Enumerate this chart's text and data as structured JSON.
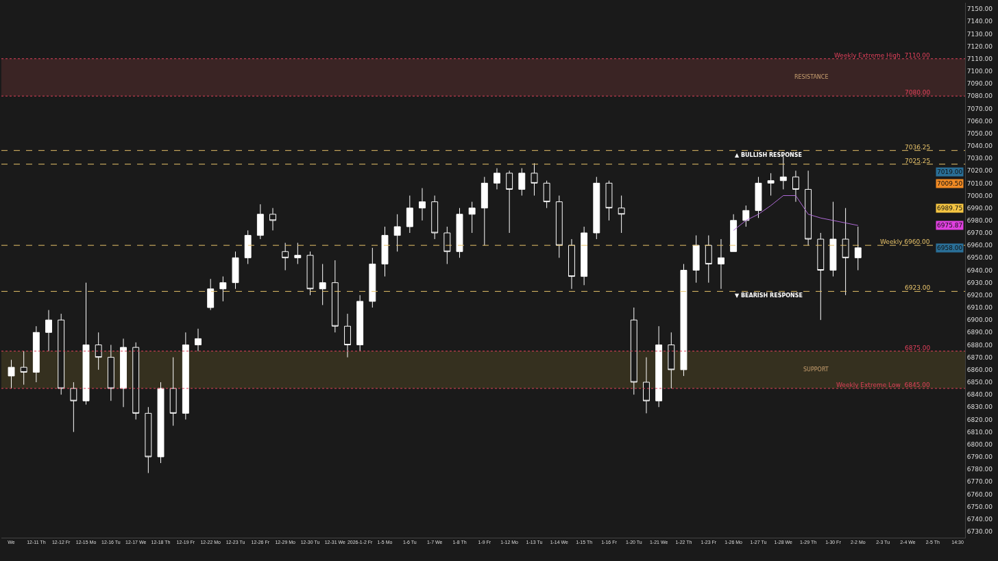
{
  "chart_data": {
    "type": "candlestick",
    "categories": [
      "We",
      null,
      "12-11 Th",
      null,
      "12-12 Fr",
      null,
      "12-15 Mo",
      null,
      "12-16 Tu",
      null,
      "12-17 We",
      null,
      "12-18 Th",
      null,
      "12-19 Fr",
      null,
      "12-22 Mo",
      null,
      "12-23 Tu",
      null,
      "12-26 Fr",
      null,
      "12-29 Mo",
      null,
      "12-30 Tu",
      null,
      "12-31 We",
      null,
      "2026-1-2 Fr",
      null,
      "1-5 Mo",
      null,
      "1-6 Tu",
      null,
      "1-7 We",
      null,
      "1-8 Th",
      null,
      "1-9 Fr",
      null,
      "1-12 Mo",
      null,
      "1-13 Tu",
      null,
      "1-14 We",
      null,
      "1-15 Th",
      null,
      "1-16 Fr",
      null,
      "1-20 Tu",
      null,
      "1-21 We",
      null,
      "1-22 Th",
      null,
      "1-23 Fr",
      null,
      "1-26 Mo",
      null,
      "1-27 Tu",
      null,
      "1-28 We",
      null,
      "1-29 Th",
      null,
      "1-30 Fr",
      null,
      "2-2 Mo",
      null,
      "2-3 Tu",
      null,
      "2-4 We",
      null,
      "2-5 Th",
      null,
      "14:30"
    ],
    "series": [
      {
        "color": "#ffffff",
        "ohlc": [
          [
            6855,
            6868,
            6845,
            6862
          ],
          [
            6862,
            6875,
            6848,
            6858
          ],
          [
            6858,
            6895,
            6850,
            6890
          ],
          [
            6890,
            6908,
            6875,
            6900
          ],
          [
            6900,
            6905,
            6840,
            6845
          ],
          [
            6845,
            6850,
            6810,
            6835
          ],
          [
            6835,
            6930,
            6832,
            6880
          ],
          [
            6880,
            6890,
            6860,
            6870
          ],
          [
            6870,
            6880,
            6835,
            6845
          ],
          [
            6845,
            6885,
            6830,
            6878
          ],
          [
            6878,
            6882,
            6820,
            6825
          ],
          [
            6825,
            6830,
            6777,
            6790
          ],
          [
            6790,
            6850,
            6785,
            6845
          ],
          [
            6845,
            6870,
            6815,
            6825
          ],
          [
            6825,
            6890,
            6820,
            6880
          ],
          [
            6880,
            6893,
            6875,
            6885
          ],
          [
            6910,
            6933,
            6908,
            6925
          ],
          [
            6925,
            6935,
            6915,
            6930
          ],
          [
            6930,
            6955,
            6925,
            6950
          ],
          [
            6950,
            6972,
            6945,
            6968
          ],
          [
            6968,
            6993,
            6965,
            6985
          ],
          [
            6985,
            6990,
            6972,
            6980
          ],
          [
            6955,
            6962,
            6940,
            6950
          ],
          [
            6950,
            6962,
            6945,
            6952
          ],
          [
            6952,
            6955,
            6920,
            6925
          ],
          [
            6925,
            6945,
            6912,
            6930
          ],
          [
            6930,
            6948,
            6890,
            6895
          ],
          [
            6895,
            6905,
            6870,
            6880
          ],
          [
            6880,
            6920,
            6875,
            6915
          ],
          [
            6915,
            6958,
            6910,
            6945
          ],
          [
            6945,
            6975,
            6935,
            6968
          ],
          [
            6968,
            6985,
            6955,
            6975
          ],
          [
            6975,
            7000,
            6970,
            6990
          ],
          [
            6990,
            7006,
            6980,
            6995
          ],
          [
            6995,
            7000,
            6965,
            6970
          ],
          [
            6970,
            6975,
            6945,
            6955
          ],
          [
            6955,
            6990,
            6950,
            6985
          ],
          [
            6985,
            6995,
            6970,
            6990
          ],
          [
            6990,
            7015,
            6960,
            7010
          ],
          [
            7010,
            7022,
            7005,
            7018
          ],
          [
            7018,
            7020,
            6970,
            7005
          ],
          [
            7005,
            7022,
            7000,
            7018
          ],
          [
            7018,
            7026,
            7000,
            7010
          ],
          [
            7010,
            7012,
            6990,
            6995
          ],
          [
            6995,
            7000,
            6950,
            6960
          ],
          [
            6960,
            6965,
            6925,
            6935
          ],
          [
            6935,
            6975,
            6928,
            6970
          ],
          [
            6970,
            7015,
            6965,
            7010
          ],
          [
            7010,
            7012,
            6980,
            6990
          ],
          [
            6990,
            7000,
            6970,
            6985
          ],
          [
            6900,
            6910,
            6840,
            6850
          ],
          [
            6850,
            6870,
            6825,
            6835
          ],
          [
            6835,
            6895,
            6830,
            6880
          ],
          [
            6880,
            6890,
            6845,
            6860
          ],
          [
            6860,
            6945,
            6855,
            6940
          ],
          [
            6940,
            6968,
            6930,
            6960
          ],
          [
            6960,
            6968,
            6930,
            6945
          ],
          [
            6945,
            6965,
            6925,
            6950
          ],
          [
            6955,
            6985,
            6955,
            6980
          ],
          [
            6980,
            6992,
            6975,
            6988
          ],
          [
            6988,
            7015,
            6982,
            7010
          ],
          [
            7010,
            7018,
            7000,
            7012
          ],
          [
            7012,
            7032,
            7005,
            7015
          ],
          [
            7015,
            7020,
            6995,
            7005
          ],
          [
            7005,
            7020,
            6960,
            6965
          ],
          [
            6965,
            6970,
            6900,
            6940
          ],
          [
            6940,
            6995,
            6935,
            6965
          ],
          [
            6965,
            6990,
            6920,
            6950
          ],
          [
            6950,
            6975,
            6940,
            6958
          ],
          null,
          null,
          null,
          null,
          null,
          null,
          null,
          null
        ]
      },
      {
        "type": "line",
        "color": "#b06bd8",
        "values": [
          null,
          null,
          null,
          null,
          null,
          null,
          null,
          null,
          null,
          null,
          null,
          null,
          null,
          null,
          null,
          null,
          null,
          null,
          null,
          null,
          null,
          null,
          null,
          null,
          null,
          null,
          null,
          null,
          null,
          null,
          null,
          null,
          null,
          null,
          null,
          null,
          null,
          null,
          null,
          null,
          null,
          null,
          null,
          null,
          null,
          null,
          null,
          null,
          null,
          null,
          null,
          null,
          null,
          null,
          null,
          null,
          null,
          null,
          6972,
          6980,
          6985,
          6992,
          7000,
          7000,
          6985,
          6982,
          6980,
          6978,
          6976,
          null,
          null,
          null,
          null,
          null,
          null,
          null,
          null
        ]
      }
    ],
    "ylim": [
      6725,
      7155
    ],
    "yticks": [
      {
        "value": 6730,
        "label": "6730.00"
      },
      {
        "value": 6740,
        "label": "6740.00"
      },
      {
        "value": 6750,
        "label": "6750.00"
      },
      {
        "value": 6760,
        "label": "6760.00"
      },
      {
        "value": 6770,
        "label": "6770.00"
      },
      {
        "value": 6780,
        "label": "6780.00"
      },
      {
        "value": 6790,
        "label": "6790.00"
      },
      {
        "value": 6800,
        "label": "6800.00"
      },
      {
        "value": 6810,
        "label": "6810.00"
      },
      {
        "value": 6820,
        "label": "6820.00"
      },
      {
        "value": 6830,
        "label": "6830.00"
      },
      {
        "value": 6840,
        "label": "6840.00"
      },
      {
        "value": 6850,
        "label": "6850.00"
      },
      {
        "value": 6860,
        "label": "6860.00"
      },
      {
        "value": 6870,
        "label": "6870.00"
      },
      {
        "value": 6880,
        "label": "6880.00"
      },
      {
        "value": 6890,
        "label": "6890.00"
      },
      {
        "value": 6900,
        "label": "6900.00"
      },
      {
        "value": 6910,
        "label": "6910.00"
      },
      {
        "value": 6920,
        "label": "6920.00"
      },
      {
        "value": 6930,
        "label": "6930.00"
      },
      {
        "value": 6940,
        "label": "6940.00"
      },
      {
        "value": 6950,
        "label": "6950.00"
      },
      {
        "value": 6960,
        "label": "6960.00"
      },
      {
        "value": 6970,
        "label": "6970.00"
      },
      {
        "value": 6980,
        "label": "6980.00"
      },
      {
        "value": 6990,
        "label": "6990.00"
      },
      {
        "value": 7000,
        "label": "7000.00"
      },
      {
        "value": 7010,
        "label": "7010.00"
      },
      {
        "value": 7020,
        "label": "7020.00"
      },
      {
        "value": 7030,
        "label": "7030.00"
      },
      {
        "value": 7040,
        "label": "7040.00"
      },
      {
        "value": 7050,
        "label": "7050.00"
      },
      {
        "value": 7060,
        "label": "7060.00"
      },
      {
        "value": 7070,
        "label": "7070.00"
      },
      {
        "value": 7080,
        "label": "7080.00"
      },
      {
        "value": 7090,
        "label": "7090.00"
      },
      {
        "value": 7100,
        "label": "7100.00"
      },
      {
        "value": 7110,
        "label": "7110.00"
      },
      {
        "value": 7120,
        "label": "7120.00"
      },
      {
        "value": 7130,
        "label": "7130.00"
      },
      {
        "value": 7140,
        "label": "7140.00"
      },
      {
        "value": 7150,
        "label": "7150.00"
      }
    ],
    "ref_lines": [
      {
        "axis": "y",
        "value": 7110,
        "label": "Weekly Extreme High  7110.00",
        "color": "#e0405a",
        "line_style": "dotted"
      },
      {
        "axis": "y",
        "value": 7080,
        "label": "7080.00",
        "color": "#e0405a",
        "line_style": "dotted"
      },
      {
        "axis": "y",
        "value": 7036.25,
        "label": "7036.25",
        "color": "#e8c36a",
        "line_style": "dashed"
      },
      {
        "axis": "y",
        "value": 7025.25,
        "label": "7025.25",
        "color": "#e8c36a",
        "line_style": "dashed"
      },
      {
        "axis": "y",
        "value": 6960,
        "label": "Weekly 6960.00",
        "color": "#e8c36a",
        "line_style": "dashed"
      },
      {
        "axis": "y",
        "value": 6923,
        "label": "6923.00",
        "color": "#e8c36a",
        "line_style": "dashed"
      },
      {
        "axis": "y",
        "value": 6875,
        "label": "6875.00",
        "color": "#e0405a",
        "line_style": "dotted"
      },
      {
        "axis": "y",
        "value": 6845,
        "label": "Weekly Extreme Low  6845.00",
        "color": "#e0405a",
        "line_style": "dotted"
      }
    ],
    "bands": [
      {
        "axis": "y",
        "from": 7080,
        "to": 7110,
        "label": "RESISTANCE",
        "color": "#3a2424"
      },
      {
        "axis": "y",
        "from": 6845,
        "to": 6875,
        "label": "SUPPORT",
        "color": "#35301f"
      }
    ],
    "annotations": [
      {
        "text": "▲ BULLISH RESPONSE",
        "x": "1-26 Mo",
        "y": 7036.25
      },
      {
        "text": "▼ BEARISH RESPONSE",
        "x": "1-26 Mo",
        "y": 6923
      },
      "7019.00",
      "7009.50",
      "6989.75",
      "6975.87",
      "6958.00"
    ],
    "grid": false
  }
}
